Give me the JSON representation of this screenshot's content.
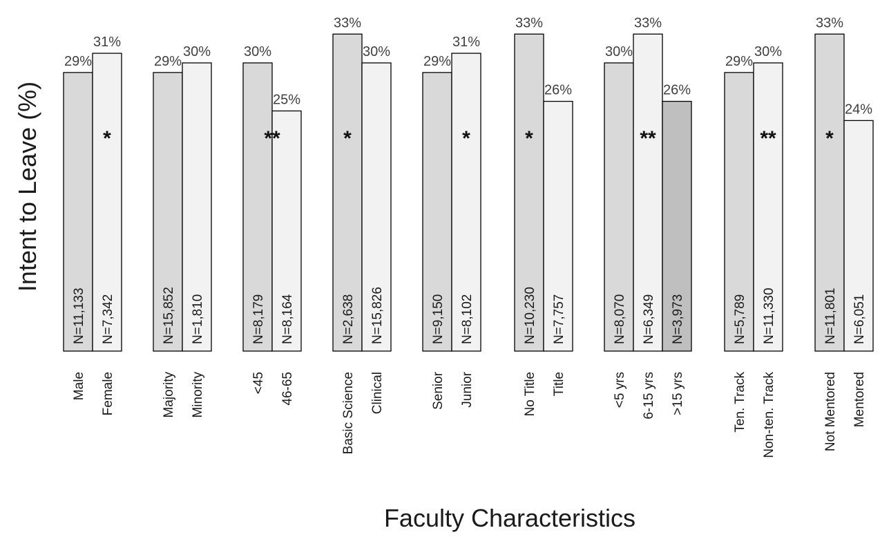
{
  "chart_data": {
    "type": "bar",
    "title": "",
    "xlabel": "Faculty Characteristics",
    "ylabel": "Intent to Leave (%)",
    "ylim": [
      0,
      35
    ],
    "grid": false,
    "legend": "none",
    "colors": {
      "dark": "#d9d9d9",
      "light": "#f2f2f2",
      "darker": "#bfbfbf",
      "edge": "#000000"
    },
    "groups": [
      {
        "bars": [
          {
            "label": "Male",
            "value": 29,
            "value_label": "29%",
            "n": "N=11,133",
            "shade": "dark"
          },
          {
            "label": "Female",
            "value": 31,
            "value_label": "31%",
            "n": "N=7,342",
            "shade": "light"
          }
        ],
        "significance": "*",
        "sig_bar": 1
      },
      {
        "bars": [
          {
            "label": "Majority",
            "value": 29,
            "value_label": "29%",
            "n": "N=15,852",
            "shade": "dark"
          },
          {
            "label": "Minority",
            "value": 30,
            "value_label": "30%",
            "n": "N=1,810",
            "shade": "light"
          }
        ],
        "significance": "",
        "sig_bar": 0
      },
      {
        "bars": [
          {
            "label": "<45",
            "value": 30,
            "value_label": "30%",
            "n": "N=8,179",
            "shade": "dark"
          },
          {
            "label": "46-65",
            "value": 25,
            "value_label": "25%",
            "n": "N=8,164",
            "shade": "light"
          }
        ],
        "significance": "**",
        "sig_bar": 0.5
      },
      {
        "bars": [
          {
            "label": "Basic Science",
            "value": 33,
            "value_label": "33%",
            "n": "N=2,638",
            "shade": "dark"
          },
          {
            "label": "Clinical",
            "value": 30,
            "value_label": "30%",
            "n": "N=15,826",
            "shade": "light"
          }
        ],
        "significance": "*",
        "sig_bar": 0
      },
      {
        "bars": [
          {
            "label": "Senior",
            "value": 29,
            "value_label": "29%",
            "n": "N=9,150",
            "shade": "dark"
          },
          {
            "label": "Junior",
            "value": 31,
            "value_label": "31%",
            "n": "N=8,102",
            "shade": "light"
          }
        ],
        "significance": "*",
        "sig_bar": 1
      },
      {
        "bars": [
          {
            "label": "No Title",
            "value": 33,
            "value_label": "33%",
            "n": "N=10,230",
            "shade": "dark"
          },
          {
            "label": "Title",
            "value": 26,
            "value_label": "26%",
            "n": "N=7,757",
            "shade": "light"
          }
        ],
        "significance": "*",
        "sig_bar": 0
      },
      {
        "bars": [
          {
            "label": "<5 yrs",
            "value": 30,
            "value_label": "30%",
            "n": "N=8,070",
            "shade": "dark"
          },
          {
            "label": "6-15 yrs",
            "value": 33,
            "value_label": "33%",
            "n": "N=6,349",
            "shade": "light"
          },
          {
            "label": ">15 yrs",
            "value": 26,
            "value_label": "26%",
            "n": "N=3,973",
            "shade": "darker"
          }
        ],
        "significance": "**",
        "sig_bar": 1
      },
      {
        "bars": [
          {
            "label": "Ten. Track",
            "value": 29,
            "value_label": "29%",
            "n": "N=5,789",
            "shade": "dark"
          },
          {
            "label": "Non-ten. Track",
            "value": 30,
            "value_label": "30%",
            "n": "N=11,330",
            "shade": "light"
          }
        ],
        "significance": "**",
        "sig_bar": 1
      },
      {
        "bars": [
          {
            "label": "Not Mentored",
            "value": 33,
            "value_label": "33%",
            "n": "N=11,801",
            "shade": "dark"
          },
          {
            "label": "Mentored",
            "value": 24,
            "value_label": "24%",
            "n": "N=6,051",
            "shade": "light"
          }
        ],
        "significance": "*",
        "sig_bar": 0
      }
    ]
  }
}
